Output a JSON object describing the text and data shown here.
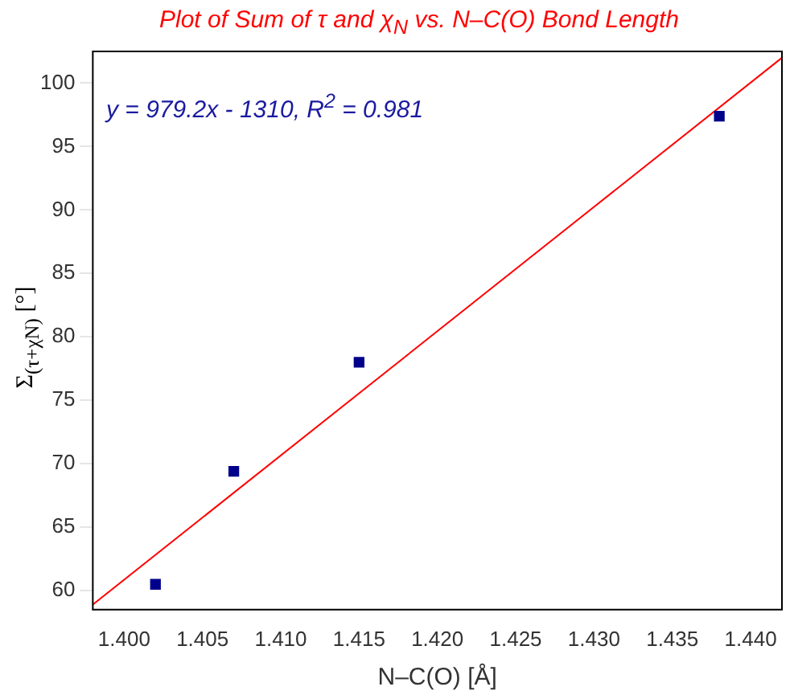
{
  "chart_data": {
    "type": "scatter",
    "title": "Plot of Sum of τ and χ$_{N}$ vs. N–C(O) Bond Length",
    "xlabel": "N–C(O) [Å]",
    "ylabel": "Σ$_{(τ+χN)}$ [°]",
    "annotations": [
      "y = 979.2x - 1310, R$^{2}$ = 0.981"
    ],
    "series": [
      {
        "color": "#00008b",
        "x": [
          1.402,
          1.407,
          1.415,
          1.438
        ],
        "values": [
          60.5,
          69.4,
          78.0,
          97.4
        ],
        "marker": "square"
      },
      {
        "type": "line",
        "color": "#ff0000",
        "x": [
          1.398,
          1.442
        ],
        "values": [
          58.9,
          102.0
        ],
        "marker": "none"
      }
    ],
    "xlim": [
      1.398,
      1.442
    ],
    "ylim": [
      58.5,
      102.5
    ],
    "xticks": [
      {
        "value": 1.4,
        "label": "1.400"
      },
      {
        "value": 1.405,
        "label": "1.405"
      },
      {
        "value": 1.41,
        "label": "1.410"
      },
      {
        "value": 1.415,
        "label": "1.415"
      },
      {
        "value": 1.42,
        "label": "1.420"
      },
      {
        "value": 1.425,
        "label": "1.425"
      },
      {
        "value": 1.43,
        "label": "1.430"
      },
      {
        "value": 1.435,
        "label": "1.435"
      },
      {
        "value": 1.44,
        "label": "1.440"
      }
    ],
    "yticks": [
      60,
      65,
      70,
      75,
      80,
      85,
      90,
      95,
      100
    ],
    "grid": false,
    "legend": false
  }
}
